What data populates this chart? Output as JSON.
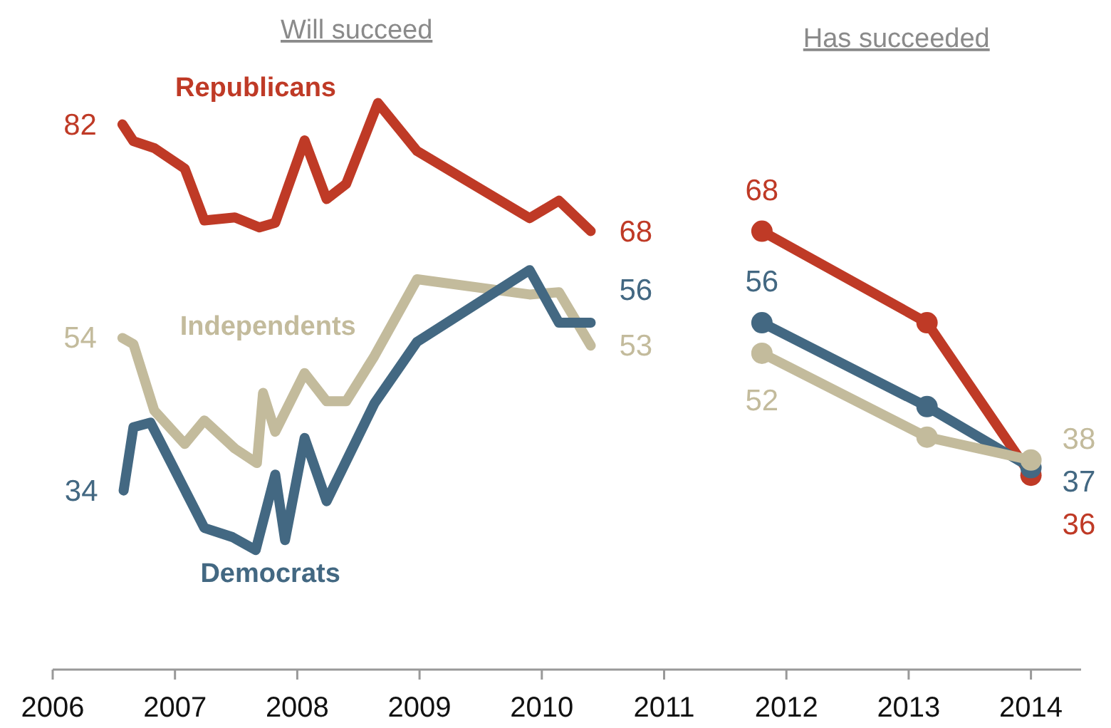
{
  "chart_data": {
    "type": "line",
    "annotations": [
      "Will succeed",
      "Has succeeded"
    ],
    "xlim": [
      2006,
      2014.41
    ],
    "xticks": [
      2006,
      2007,
      2008,
      2009,
      2010,
      2011,
      2012,
      2013,
      2014
    ],
    "tick_labels": "x",
    "line_style": "solid",
    "series": [
      {
        "name": "Republicans",
        "color": "#bf3a26",
        "marker": "none",
        "x": [
          2006.57,
          2006.66,
          2006.83,
          2007.08,
          2007.24,
          2007.49,
          2007.69,
          2007.82,
          2008.06,
          2008.24,
          2008.4,
          2008.66,
          2008.98,
          2009.9,
          2010.14,
          2010.4
        ],
        "values": [
          82,
          79.8,
          78.9,
          76.2,
          69.4,
          69.8,
          68.5,
          69.1,
          79.9,
          72.2,
          74.2,
          84.8,
          78.5,
          69.7,
          72,
          68
        ],
        "value_labels": [
          "82",
          null,
          null,
          null,
          null,
          null,
          null,
          null,
          null,
          null,
          null,
          null,
          null,
          null,
          null,
          "68"
        ]
      },
      {
        "name": "Independents",
        "color": "#c3bb9c",
        "marker": "none",
        "x": [
          2006.57,
          2006.66,
          2006.83,
          2007.08,
          2007.24,
          2007.49,
          2007.67,
          2007.72,
          2007.82,
          2008.06,
          2008.24,
          2008.4,
          2008.63,
          2008.98,
          2009.9,
          2010.14,
          2010.4
        ],
        "values": [
          54,
          53.2,
          44.5,
          40.1,
          43.2,
          39.5,
          37.6,
          46.8,
          41.7,
          49.4,
          45.7,
          45.7,
          51.6,
          61.7,
          59.7,
          60,
          53
        ],
        "value_labels": [
          "54",
          null,
          null,
          null,
          null,
          null,
          null,
          null,
          null,
          null,
          null,
          null,
          null,
          null,
          null,
          null,
          "53"
        ]
      },
      {
        "name": "Democrats",
        "color": "#436882",
        "marker": "none",
        "x": [
          2006.58,
          2006.66,
          2006.8,
          2007.24,
          2007.47,
          2007.66,
          2007.82,
          2007.9,
          2008.06,
          2008.24,
          2008.63,
          2008.98,
          2009.9,
          2010.14,
          2010.4
        ],
        "values": [
          34,
          42.3,
          42.9,
          29.1,
          27.9,
          26.2,
          36.1,
          27.5,
          40.9,
          32.6,
          45.4,
          53.5,
          62.9,
          56,
          56
        ],
        "value_labels": [
          "34",
          null,
          null,
          null,
          null,
          null,
          null,
          null,
          null,
          null,
          null,
          null,
          null,
          null,
          "56"
        ]
      },
      {
        "color": "#bf3a26",
        "marker": "circle",
        "x": [
          2011.8,
          2013.15,
          2014
        ],
        "values": [
          68,
          56,
          36
        ],
        "value_labels": [
          "68",
          null,
          "36"
        ]
      },
      {
        "color": "#436882",
        "marker": "circle",
        "x": [
          2011.8,
          2013.15,
          2014
        ],
        "values": [
          56,
          45,
          37
        ],
        "value_labels": [
          "56",
          null,
          "37"
        ]
      },
      {
        "color": "#c3bb9c",
        "marker": "circle",
        "x": [
          2011.8,
          2013.15,
          2014
        ],
        "values": [
          52,
          41,
          38
        ],
        "value_labels": [
          "52",
          null,
          "38"
        ]
      }
    ]
  }
}
